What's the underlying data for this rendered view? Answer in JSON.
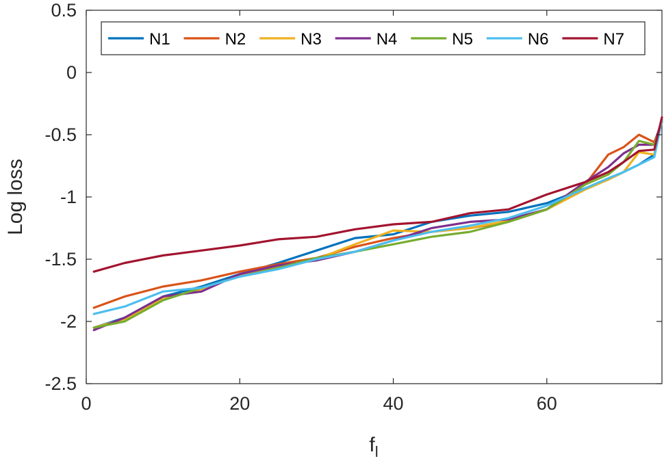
{
  "chart_data": {
    "type": "line",
    "xlabel": "f",
    "xlabel_sub": "l",
    "ylabel": "Log loss",
    "xlim": [
      0,
      75
    ],
    "ylim": [
      -2.5,
      0.5
    ],
    "xticks": [
      0,
      20,
      40,
      60
    ],
    "xtick_labels": [
      "0",
      "20",
      "40",
      "60"
    ],
    "yticks": [
      -2.5,
      -2,
      -1.5,
      -1,
      -0.5,
      0,
      0.5
    ],
    "ytick_labels": [
      "-2.5",
      "-2",
      "-1.5",
      "-1",
      "-0.5",
      "0",
      "0.5"
    ],
    "grid": false,
    "legend_placement": "top",
    "x": [
      1,
      5,
      10,
      15,
      20,
      25,
      30,
      35,
      40,
      45,
      50,
      55,
      60,
      65,
      68,
      70,
      72,
      74,
      75
    ],
    "series": [
      {
        "name": "N1",
        "color": "#0072BD",
        "values": [
          -2.05,
          -1.97,
          -1.8,
          -1.72,
          -1.62,
          -1.53,
          -1.43,
          -1.33,
          -1.3,
          -1.2,
          -1.15,
          -1.12,
          -1.05,
          -0.93,
          -0.86,
          -0.8,
          -0.74,
          -0.66,
          -0.38
        ]
      },
      {
        "name": "N2",
        "color": "#D95319",
        "values": [
          -1.89,
          -1.8,
          -1.72,
          -1.67,
          -1.6,
          -1.54,
          -1.49,
          -1.4,
          -1.33,
          -1.28,
          -1.25,
          -1.2,
          -1.1,
          -0.9,
          -0.66,
          -0.6,
          -0.5,
          -0.56,
          -0.4
        ]
      },
      {
        "name": "N3",
        "color": "#EDB120",
        "values": [
          -2.05,
          -1.98,
          -1.82,
          -1.74,
          -1.63,
          -1.56,
          -1.5,
          -1.38,
          -1.27,
          -1.28,
          -1.25,
          -1.19,
          -1.1,
          -0.94,
          -0.86,
          -0.8,
          -0.64,
          -0.66,
          -0.38
        ]
      },
      {
        "name": "N4",
        "color": "#7E2F8E",
        "values": [
          -2.07,
          -1.97,
          -1.8,
          -1.76,
          -1.62,
          -1.55,
          -1.51,
          -1.44,
          -1.35,
          -1.25,
          -1.2,
          -1.18,
          -1.1,
          -0.88,
          -0.76,
          -0.65,
          -0.58,
          -0.58,
          -0.38
        ]
      },
      {
        "name": "N5",
        "color": "#77AC30",
        "values": [
          -2.05,
          -2.0,
          -1.83,
          -1.73,
          -1.64,
          -1.57,
          -1.49,
          -1.44,
          -1.38,
          -1.32,
          -1.28,
          -1.2,
          -1.1,
          -0.9,
          -0.82,
          -0.72,
          -0.55,
          -0.58,
          -0.4
        ]
      },
      {
        "name": "N6",
        "color": "#4DBEEE",
        "values": [
          -1.94,
          -1.88,
          -1.76,
          -1.73,
          -1.64,
          -1.58,
          -1.5,
          -1.44,
          -1.35,
          -1.28,
          -1.23,
          -1.17,
          -1.07,
          -0.93,
          -0.85,
          -0.8,
          -0.74,
          -0.68,
          -0.38
        ]
      },
      {
        "name": "N7",
        "color": "#A2142F",
        "values": [
          -1.6,
          -1.53,
          -1.47,
          -1.43,
          -1.39,
          -1.34,
          -1.32,
          -1.26,
          -1.22,
          -1.2,
          -1.13,
          -1.1,
          -0.98,
          -0.88,
          -0.8,
          -0.72,
          -0.63,
          -0.62,
          -0.36
        ]
      }
    ]
  }
}
